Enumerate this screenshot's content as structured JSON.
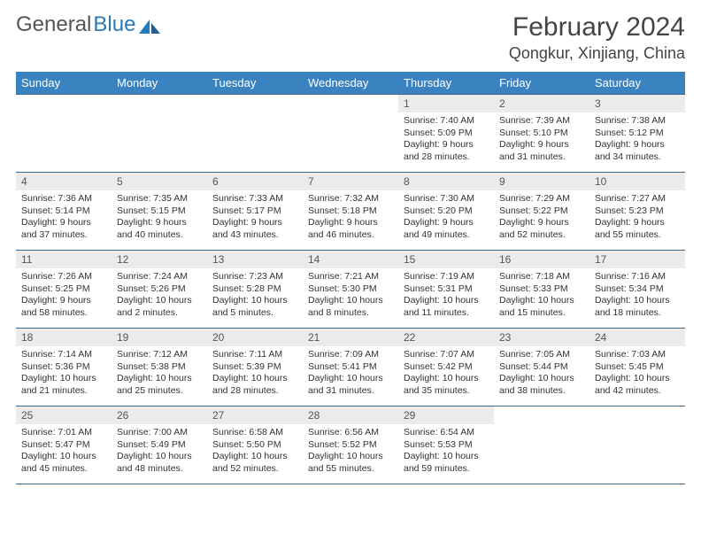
{
  "logo": {
    "text1": "General",
    "text2": "Blue"
  },
  "title": "February 2024",
  "location": "Qongkur, Xinjiang, China",
  "colors": {
    "header_bg": "#3b83c0",
    "header_fg": "#ffffff",
    "daynum_bg": "#ebebeb",
    "rule": "#3b6a8f",
    "logo_blue": "#2a7ab8"
  },
  "weekdays": [
    "Sunday",
    "Monday",
    "Tuesday",
    "Wednesday",
    "Thursday",
    "Friday",
    "Saturday"
  ],
  "weeks": [
    [
      null,
      null,
      null,
      null,
      {
        "n": "1",
        "sr": "Sunrise: 7:40 AM",
        "ss": "Sunset: 5:09 PM",
        "dl": "Daylight: 9 hours and 28 minutes."
      },
      {
        "n": "2",
        "sr": "Sunrise: 7:39 AM",
        "ss": "Sunset: 5:10 PM",
        "dl": "Daylight: 9 hours and 31 minutes."
      },
      {
        "n": "3",
        "sr": "Sunrise: 7:38 AM",
        "ss": "Sunset: 5:12 PM",
        "dl": "Daylight: 9 hours and 34 minutes."
      }
    ],
    [
      {
        "n": "4",
        "sr": "Sunrise: 7:36 AM",
        "ss": "Sunset: 5:14 PM",
        "dl": "Daylight: 9 hours and 37 minutes."
      },
      {
        "n": "5",
        "sr": "Sunrise: 7:35 AM",
        "ss": "Sunset: 5:15 PM",
        "dl": "Daylight: 9 hours and 40 minutes."
      },
      {
        "n": "6",
        "sr": "Sunrise: 7:33 AM",
        "ss": "Sunset: 5:17 PM",
        "dl": "Daylight: 9 hours and 43 minutes."
      },
      {
        "n": "7",
        "sr": "Sunrise: 7:32 AM",
        "ss": "Sunset: 5:18 PM",
        "dl": "Daylight: 9 hours and 46 minutes."
      },
      {
        "n": "8",
        "sr": "Sunrise: 7:30 AM",
        "ss": "Sunset: 5:20 PM",
        "dl": "Daylight: 9 hours and 49 minutes."
      },
      {
        "n": "9",
        "sr": "Sunrise: 7:29 AM",
        "ss": "Sunset: 5:22 PM",
        "dl": "Daylight: 9 hours and 52 minutes."
      },
      {
        "n": "10",
        "sr": "Sunrise: 7:27 AM",
        "ss": "Sunset: 5:23 PM",
        "dl": "Daylight: 9 hours and 55 minutes."
      }
    ],
    [
      {
        "n": "11",
        "sr": "Sunrise: 7:26 AM",
        "ss": "Sunset: 5:25 PM",
        "dl": "Daylight: 9 hours and 58 minutes."
      },
      {
        "n": "12",
        "sr": "Sunrise: 7:24 AM",
        "ss": "Sunset: 5:26 PM",
        "dl": "Daylight: 10 hours and 2 minutes."
      },
      {
        "n": "13",
        "sr": "Sunrise: 7:23 AM",
        "ss": "Sunset: 5:28 PM",
        "dl": "Daylight: 10 hours and 5 minutes."
      },
      {
        "n": "14",
        "sr": "Sunrise: 7:21 AM",
        "ss": "Sunset: 5:30 PM",
        "dl": "Daylight: 10 hours and 8 minutes."
      },
      {
        "n": "15",
        "sr": "Sunrise: 7:19 AM",
        "ss": "Sunset: 5:31 PM",
        "dl": "Daylight: 10 hours and 11 minutes."
      },
      {
        "n": "16",
        "sr": "Sunrise: 7:18 AM",
        "ss": "Sunset: 5:33 PM",
        "dl": "Daylight: 10 hours and 15 minutes."
      },
      {
        "n": "17",
        "sr": "Sunrise: 7:16 AM",
        "ss": "Sunset: 5:34 PM",
        "dl": "Daylight: 10 hours and 18 minutes."
      }
    ],
    [
      {
        "n": "18",
        "sr": "Sunrise: 7:14 AM",
        "ss": "Sunset: 5:36 PM",
        "dl": "Daylight: 10 hours and 21 minutes."
      },
      {
        "n": "19",
        "sr": "Sunrise: 7:12 AM",
        "ss": "Sunset: 5:38 PM",
        "dl": "Daylight: 10 hours and 25 minutes."
      },
      {
        "n": "20",
        "sr": "Sunrise: 7:11 AM",
        "ss": "Sunset: 5:39 PM",
        "dl": "Daylight: 10 hours and 28 minutes."
      },
      {
        "n": "21",
        "sr": "Sunrise: 7:09 AM",
        "ss": "Sunset: 5:41 PM",
        "dl": "Daylight: 10 hours and 31 minutes."
      },
      {
        "n": "22",
        "sr": "Sunrise: 7:07 AM",
        "ss": "Sunset: 5:42 PM",
        "dl": "Daylight: 10 hours and 35 minutes."
      },
      {
        "n": "23",
        "sr": "Sunrise: 7:05 AM",
        "ss": "Sunset: 5:44 PM",
        "dl": "Daylight: 10 hours and 38 minutes."
      },
      {
        "n": "24",
        "sr": "Sunrise: 7:03 AM",
        "ss": "Sunset: 5:45 PM",
        "dl": "Daylight: 10 hours and 42 minutes."
      }
    ],
    [
      {
        "n": "25",
        "sr": "Sunrise: 7:01 AM",
        "ss": "Sunset: 5:47 PM",
        "dl": "Daylight: 10 hours and 45 minutes."
      },
      {
        "n": "26",
        "sr": "Sunrise: 7:00 AM",
        "ss": "Sunset: 5:49 PM",
        "dl": "Daylight: 10 hours and 48 minutes."
      },
      {
        "n": "27",
        "sr": "Sunrise: 6:58 AM",
        "ss": "Sunset: 5:50 PM",
        "dl": "Daylight: 10 hours and 52 minutes."
      },
      {
        "n": "28",
        "sr": "Sunrise: 6:56 AM",
        "ss": "Sunset: 5:52 PM",
        "dl": "Daylight: 10 hours and 55 minutes."
      },
      {
        "n": "29",
        "sr": "Sunrise: 6:54 AM",
        "ss": "Sunset: 5:53 PM",
        "dl": "Daylight: 10 hours and 59 minutes."
      },
      null,
      null
    ]
  ]
}
